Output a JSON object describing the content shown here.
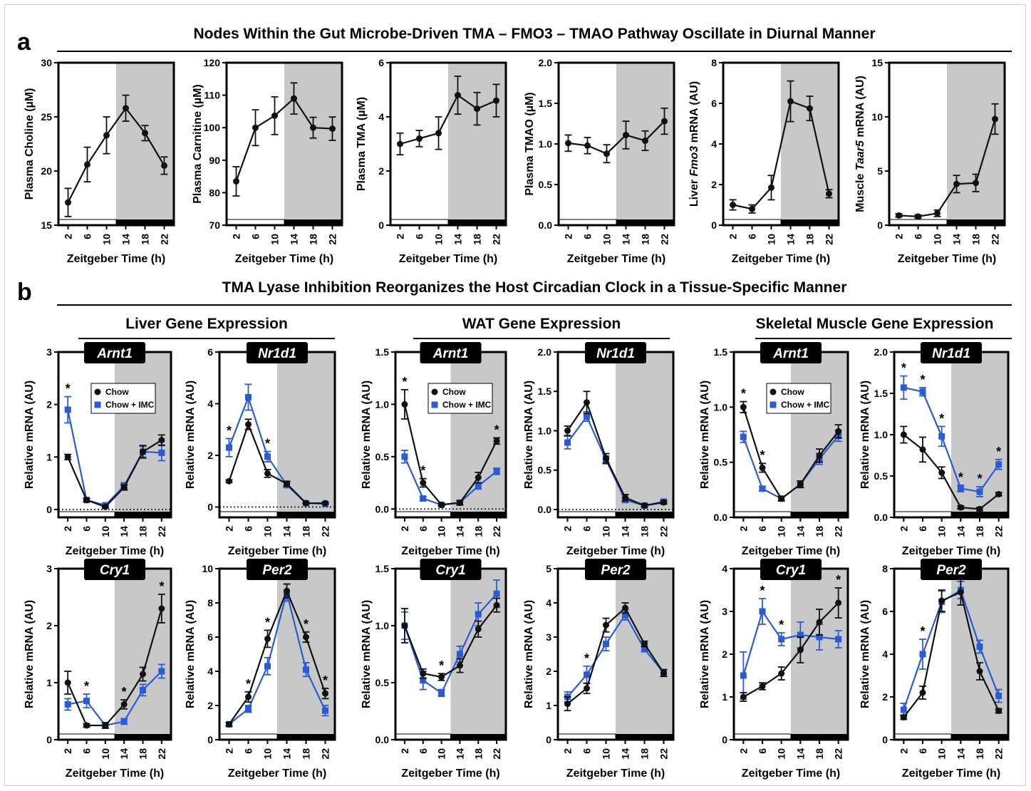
{
  "panel_a": {
    "letter": "a",
    "title": "Nodes Within the Gut Microbe-Driven TMA – FMO3 – TMAO Pathway Oscillate in Diurnal Manner"
  },
  "panel_b": {
    "letter": "b",
    "title": "TMA Lyase Inhibition Reorganizes the Host Circadian Clock in a Tissue-Specific Manner",
    "groups": [
      "Liver Gene Expression",
      "WAT Gene Expression",
      "Skeletal Muscle Gene Expression"
    ]
  },
  "colors": {
    "chow": "#111111",
    "chow_imc": "#2a5bd7",
    "dark_phase": "#c8c8c8"
  },
  "chart_data": [
    {
      "id": "a1",
      "type": "line",
      "ylabel": "Plasma Choline (µM)",
      "xlabel": "Zeitgeber Time (h)",
      "ylim": [
        15,
        30
      ],
      "yticks": [
        15,
        20,
        25,
        30
      ],
      "x": [
        2,
        6,
        10,
        14,
        18,
        22
      ],
      "series": [
        {
          "values": [
            17.1,
            20.6,
            23.3,
            25.8,
            23.5,
            20.5
          ],
          "err": [
            1.3,
            1.6,
            1.7,
            1.2,
            0.7,
            0.8
          ]
        }
      ]
    },
    {
      "id": "a2",
      "type": "line",
      "ylabel": "Plasma Carnitine (µM)",
      "xlabel": "Zeitgeber Time (h)",
      "ylim": [
        70,
        120
      ],
      "yticks": [
        70,
        80,
        90,
        100,
        110,
        120
      ],
      "x": [
        2,
        6,
        10,
        14,
        18,
        22
      ],
      "series": [
        {
          "values": [
            83.5,
            100,
            103.7,
            109,
            100,
            99.7
          ],
          "err": [
            4.5,
            5.5,
            5.8,
            4.8,
            3.2,
            3.6
          ]
        }
      ]
    },
    {
      "id": "a3",
      "type": "line",
      "ylabel": "Plasma TMA (µM)",
      "xlabel": "Zeitgeber Time (h)",
      "ylim": [
        0,
        6
      ],
      "yticks": [
        0,
        2,
        4,
        6
      ],
      "x": [
        2,
        6,
        10,
        14,
        18,
        22
      ],
      "series": [
        {
          "values": [
            3.0,
            3.2,
            3.4,
            4.8,
            4.3,
            4.6
          ],
          "err": [
            0.4,
            0.3,
            0.6,
            0.7,
            0.6,
            0.6
          ]
        }
      ]
    },
    {
      "id": "a4",
      "type": "line",
      "ylabel": "Plasma TMAO (µM)",
      "xlabel": "Zeitgeber Time (h)",
      "ylim": [
        0,
        2
      ],
      "yticks": [
        0,
        0.5,
        1.0,
        1.5,
        2.0
      ],
      "ytick_labels": [
        "0.0",
        "0.5",
        "1.0",
        "1.5",
        "2.0"
      ],
      "x": [
        2,
        6,
        10,
        14,
        18,
        22
      ],
      "series": [
        {
          "values": [
            1.01,
            0.98,
            0.88,
            1.11,
            1.04,
            1.28
          ],
          "err": [
            0.1,
            0.1,
            0.11,
            0.17,
            0.12,
            0.16
          ]
        }
      ]
    },
    {
      "id": "a5",
      "type": "line",
      "ylabel": "Liver Fmo3 mRNA (AU)",
      "ylabel_parts": [
        "Liver ",
        "Fmo3",
        " mRNA (AU)"
      ],
      "xlabel": "Zeitgeber Time (h)",
      "ylim": [
        0,
        8
      ],
      "yticks": [
        0,
        2,
        4,
        6,
        8
      ],
      "x": [
        2,
        6,
        10,
        14,
        18,
        22
      ],
      "series": [
        {
          "values": [
            1.0,
            0.8,
            1.85,
            6.1,
            5.75,
            1.55
          ],
          "err": [
            0.25,
            0.2,
            0.6,
            1.0,
            0.6,
            0.2
          ]
        }
      ]
    },
    {
      "id": "a6",
      "type": "line",
      "ylabel": "Muscle Taar5 mRNA (AU)",
      "ylabel_parts": [
        "Muscle ",
        "Taar5",
        " mRNA (AU)"
      ],
      "xlabel": "Zeitgeber Time (h)",
      "ylim": [
        0,
        15
      ],
      "yticks": [
        0,
        5,
        10,
        15
      ],
      "x": [
        2,
        6,
        10,
        14,
        18,
        22
      ],
      "series": [
        {
          "values": [
            0.9,
            0.8,
            1.1,
            3.8,
            3.9,
            9.8
          ],
          "err": [
            0.15,
            0.15,
            0.3,
            0.8,
            0.8,
            1.4
          ]
        }
      ]
    },
    {
      "id": "b1",
      "type": "line",
      "gene": "Arnt1",
      "ylabel": "Relative mRNA (AU)",
      "xlabel": "Zeitgeber Time (h)",
      "ylim": [
        -0.15,
        3
      ],
      "yticks": [
        0,
        1,
        2,
        3
      ],
      "dotted_zero": true,
      "x": [
        2,
        6,
        10,
        14,
        18,
        22
      ],
      "legend": [
        "Chow",
        "Chow + IMC"
      ],
      "series": [
        {
          "name": "Chow",
          "values": [
            1.0,
            0.18,
            0.05,
            0.42,
            1.1,
            1.32
          ],
          "err": [
            0.05,
            0.03,
            0.02,
            0.05,
            0.12,
            0.1
          ]
        },
        {
          "name": "Chow + IMC",
          "values": [
            1.9,
            0.18,
            0.08,
            0.45,
            1.1,
            1.08
          ],
          "err": [
            0.25,
            0.03,
            0.03,
            0.06,
            0.1,
            0.15
          ]
        }
      ],
      "stars": [
        2
      ]
    },
    {
      "id": "b2",
      "type": "line",
      "gene": "Nr1d1",
      "ylabel": "Relative mRNA (AU)",
      "xlabel": "Zeitgeber Time (h)",
      "ylim": [
        -0.4,
        6
      ],
      "yticks": [
        0,
        2,
        4,
        6
      ],
      "dotted_zero": true,
      "x": [
        2,
        6,
        10,
        14,
        18,
        22
      ],
      "series": [
        {
          "name": "Chow",
          "values": [
            1.0,
            3.2,
            1.3,
            0.9,
            0.15,
            0.15
          ],
          "err": [
            0.05,
            0.2,
            0.15,
            0.1,
            0.03,
            0.03
          ]
        },
        {
          "name": "Chow + IMC",
          "values": [
            2.3,
            4.25,
            1.95,
            0.85,
            0.15,
            0.12
          ],
          "err": [
            0.35,
            0.5,
            0.2,
            0.1,
            0.03,
            0.03
          ]
        }
      ],
      "stars": [
        2,
        10
      ]
    },
    {
      "id": "b3",
      "type": "line",
      "gene": "Arnt1",
      "ylabel": "Relative mRNA (AU)",
      "xlabel": "Zeitgeber Time (h)",
      "ylim": [
        -0.08,
        1.5
      ],
      "yticks": [
        0,
        0.5,
        1.0,
        1.5
      ],
      "ytick_labels": [
        "0.0",
        "0.5",
        "1.0",
        "1.5"
      ],
      "dotted_zero": true,
      "x": [
        2,
        6,
        10,
        14,
        18,
        22
      ],
      "legend": [
        "Chow",
        "Chow + IMC"
      ],
      "series": [
        {
          "name": "Chow",
          "values": [
            1.0,
            0.25,
            0.04,
            0.06,
            0.3,
            0.65
          ],
          "err": [
            0.14,
            0.04,
            0.01,
            0.02,
            0.05,
            0.03
          ]
        },
        {
          "name": "Chow + IMC",
          "values": [
            0.5,
            0.1,
            0.04,
            0.06,
            0.22,
            0.36
          ],
          "err": [
            0.06,
            0.02,
            0.01,
            0.02,
            0.03,
            0.03
          ]
        }
      ],
      "stars": [
        2,
        6,
        22
      ]
    },
    {
      "id": "b4",
      "type": "line",
      "gene": "Nr1d1",
      "ylabel": "Relative mRNA (AU)",
      "xlabel": "Zeitgeber Time (h)",
      "ylim": [
        -0.1,
        2
      ],
      "yticks": [
        0,
        0.5,
        1.0,
        1.5,
        2.0
      ],
      "ytick_labels": [
        "0.0",
        "0.5",
        "1.0",
        "1.5",
        "2.0"
      ],
      "dotted_zero": true,
      "x": [
        2,
        6,
        10,
        14,
        18,
        22
      ],
      "series": [
        {
          "name": "Chow",
          "values": [
            1.0,
            1.36,
            0.65,
            0.15,
            0.05,
            0.09
          ],
          "err": [
            0.06,
            0.14,
            0.06,
            0.04,
            0.02,
            0.02
          ]
        },
        {
          "name": "Chow + IMC",
          "values": [
            0.85,
            1.18,
            0.63,
            0.12,
            0.05,
            0.1
          ],
          "err": [
            0.08,
            0.06,
            0.05,
            0.03,
            0.02,
            0.02
          ]
        }
      ],
      "stars": []
    },
    {
      "id": "b5",
      "type": "line",
      "gene": "Arnt1",
      "ylabel": "Relative mRNA (AU)",
      "xlabel": "Zeitgeber Time (h)",
      "ylim": [
        0,
        1.5
      ],
      "yticks": [
        0,
        0.5,
        1.0,
        1.5
      ],
      "ytick_labels": [
        "0.0",
        "0.5",
        "1.0",
        "1.5"
      ],
      "x": [
        2,
        6,
        10,
        14,
        18,
        22
      ],
      "legend": [
        "Chow",
        "Chow + IMC"
      ],
      "series": [
        {
          "name": "Chow",
          "values": [
            1.0,
            0.45,
            0.17,
            0.3,
            0.56,
            0.78
          ],
          "err": [
            0.05,
            0.04,
            0.02,
            0.03,
            0.06,
            0.06
          ]
        },
        {
          "name": "Chow + IMC",
          "values": [
            0.73,
            0.26,
            0.17,
            0.3,
            0.53,
            0.74
          ],
          "err": [
            0.05,
            0.02,
            0.02,
            0.03,
            0.05,
            0.05
          ]
        }
      ],
      "stars": [
        2,
        6
      ]
    },
    {
      "id": "b6",
      "type": "line",
      "gene": "Nr1d1",
      "ylabel": "Relative mRNA (AU)",
      "xlabel": "Zeitgeber Time (h)",
      "ylim": [
        0,
        2
      ],
      "yticks": [
        0,
        0.5,
        1.0,
        1.5,
        2.0
      ],
      "ytick_labels": [
        "0.0",
        "0.5",
        "1.0",
        "1.5",
        "2.0"
      ],
      "x": [
        2,
        6,
        10,
        14,
        18,
        22
      ],
      "series": [
        {
          "name": "Chow",
          "values": [
            1.0,
            0.82,
            0.54,
            0.12,
            0.1,
            0.28
          ],
          "err": [
            0.1,
            0.15,
            0.07,
            0.02,
            0.02,
            0.02
          ]
        },
        {
          "name": "Chow + IMC",
          "values": [
            1.57,
            1.52,
            0.98,
            0.35,
            0.31,
            0.64
          ],
          "err": [
            0.14,
            0.05,
            0.12,
            0.04,
            0.06,
            0.06
          ]
        }
      ],
      "stars": [
        2,
        6,
        10,
        14,
        18,
        22
      ]
    },
    {
      "id": "b7",
      "type": "line",
      "gene": "Cry1",
      "ylabel": "Relative mRNA (AU)",
      "xlabel": "Zeitgeber Time (h)",
      "ylim": [
        0,
        3
      ],
      "yticks": [
        0,
        1,
        2,
        3
      ],
      "x": [
        2,
        6,
        10,
        14,
        18,
        22
      ],
      "series": [
        {
          "name": "Chow",
          "values": [
            1.0,
            0.25,
            0.25,
            0.62,
            1.15,
            2.3
          ],
          "err": [
            0.2,
            0.03,
            0.05,
            0.08,
            0.12,
            0.25
          ]
        },
        {
          "name": "Chow + IMC",
          "values": [
            0.62,
            0.68,
            0.25,
            0.32,
            0.87,
            1.2
          ],
          "err": [
            0.1,
            0.12,
            0.04,
            0.05,
            0.1,
            0.12
          ]
        }
      ],
      "stars": [
        6,
        14,
        22
      ]
    },
    {
      "id": "b8",
      "type": "line",
      "gene": "Per2",
      "ylabel": "Relative mRNA (AU)",
      "xlabel": "Zeitgeber Time (h)",
      "ylim": [
        0,
        10
      ],
      "yticks": [
        0,
        2,
        4,
        6,
        8,
        10
      ],
      "x": [
        2,
        6,
        10,
        14,
        18,
        22
      ],
      "series": [
        {
          "name": "Chow",
          "values": [
            0.9,
            2.5,
            5.9,
            8.7,
            6.0,
            2.7
          ],
          "err": [
            0.1,
            0.3,
            0.5,
            0.4,
            0.3,
            0.3
          ]
        },
        {
          "name": "Chow + IMC",
          "values": [
            0.9,
            1.8,
            4.3,
            8.6,
            4.1,
            1.7
          ],
          "err": [
            0.1,
            0.2,
            0.5,
            0.5,
            0.4,
            0.3
          ]
        }
      ],
      "stars": [
        6,
        10,
        18,
        22
      ]
    },
    {
      "id": "b9",
      "type": "line",
      "gene": "Cry1",
      "ylabel": "Relative mRNA (AU)",
      "xlabel": "Zeitgeber Time (h)",
      "ylim": [
        0,
        1.5
      ],
      "yticks": [
        0,
        0.5,
        1.0,
        1.5
      ],
      "ytick_labels": [
        "0.0",
        "0.5",
        "1.0",
        "1.5"
      ],
      "x": [
        2,
        6,
        10,
        14,
        18,
        22
      ],
      "series": [
        {
          "name": "Chow",
          "values": [
            1.0,
            0.58,
            0.55,
            0.65,
            0.97,
            1.18
          ],
          "err": [
            0.15,
            0.04,
            0.03,
            0.06,
            0.07,
            0.06
          ]
        },
        {
          "name": "Chow + IMC",
          "values": [
            1.0,
            0.52,
            0.41,
            0.75,
            1.1,
            1.28
          ],
          "err": [
            0.12,
            0.08,
            0.03,
            0.07,
            0.1,
            0.12
          ]
        }
      ],
      "stars": [
        10
      ]
    },
    {
      "id": "b10",
      "type": "line",
      "gene": "Per2",
      "ylabel": "Relative mRNA (AU)",
      "xlabel": "Zeitgeber Time (h)",
      "ylim": [
        0,
        5
      ],
      "yticks": [
        0,
        1,
        2,
        3,
        4,
        5
      ],
      "x": [
        2,
        6,
        10,
        14,
        18,
        22
      ],
      "series": [
        {
          "name": "Chow",
          "values": [
            1.05,
            1.5,
            3.35,
            3.85,
            2.8,
            1.95
          ],
          "err": [
            0.2,
            0.15,
            0.2,
            0.15,
            0.08,
            0.1
          ]
        },
        {
          "name": "Chow + IMC",
          "values": [
            1.25,
            1.9,
            2.8,
            3.65,
            2.65,
            1.95
          ],
          "err": [
            0.15,
            0.25,
            0.2,
            0.15,
            0.08,
            0.1
          ]
        }
      ],
      "stars": [
        6
      ]
    },
    {
      "id": "b11",
      "type": "line",
      "gene": "Cry1",
      "ylabel": "Relative mRNA (AU)",
      "xlabel": "Zeitgeber Time (h)",
      "ylim": [
        0,
        4
      ],
      "yticks": [
        0,
        1,
        2,
        3,
        4
      ],
      "x": [
        2,
        6,
        10,
        14,
        18,
        22
      ],
      "series": [
        {
          "name": "Chow",
          "values": [
            1.0,
            1.25,
            1.55,
            2.1,
            2.75,
            3.2
          ],
          "err": [
            0.1,
            0.08,
            0.15,
            0.3,
            0.3,
            0.35
          ]
        },
        {
          "name": "Chow + IMC",
          "values": [
            1.5,
            3.0,
            2.35,
            2.45,
            2.4,
            2.35
          ],
          "err": [
            0.55,
            0.3,
            0.15,
            0.3,
            0.3,
            0.2
          ]
        }
      ],
      "stars": [
        6,
        10,
        22
      ]
    },
    {
      "id": "b12",
      "type": "line",
      "gene": "Per2",
      "ylabel": "Relative mRNA (AU)",
      "xlabel": "Zeitgeber Time (h)",
      "ylim": [
        0,
        8
      ],
      "yticks": [
        0,
        2,
        4,
        6,
        8
      ],
      "x": [
        2,
        6,
        10,
        14,
        18,
        22
      ],
      "series": [
        {
          "name": "Chow",
          "values": [
            1.05,
            2.2,
            6.5,
            6.9,
            3.2,
            1.35
          ],
          "err": [
            0.1,
            0.3,
            0.5,
            0.6,
            0.4,
            0.1
          ]
        },
        {
          "name": "Chow + IMC",
          "values": [
            1.4,
            4.0,
            6.45,
            7.0,
            4.35,
            2.05
          ],
          "err": [
            0.3,
            0.7,
            0.5,
            0.4,
            0.3,
            0.3
          ]
        }
      ],
      "stars": [
        6
      ]
    }
  ]
}
